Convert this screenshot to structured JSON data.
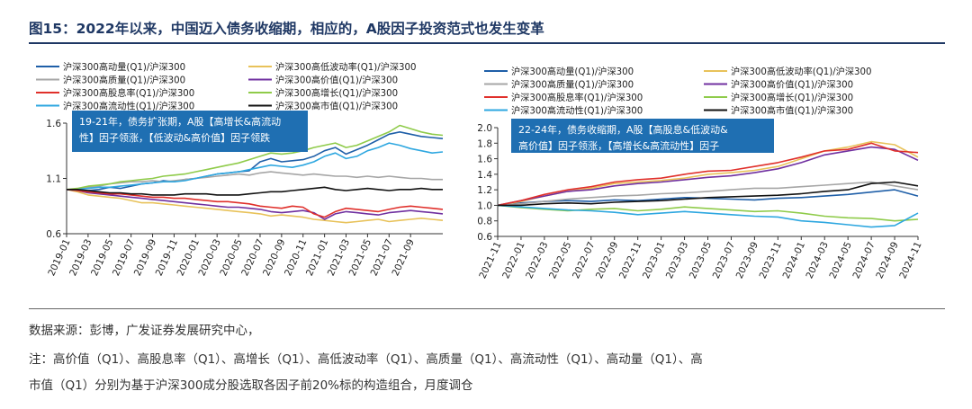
{
  "title": "图15：2022年以来，中国迈入债务收缩期，相应的，A股因子投资范式也发生变革",
  "source": "数据来源：彭博，广发证券发展研究中心，",
  "note_line1": "注：高价值（Q1）、高股息率（Q1）、高增长（Q1）、高低波动率（Q1）、高质量（Q1）、高流动性（Q1）、高动量（Q1）、高",
  "note_line2": "市值（Q1）分别为基于沪深300成分股选取各因子前20%标的构造组合，月度调仓",
  "chart_data": [
    {
      "type": "line",
      "legend_position": "top",
      "annotation": [
        "19-21年，债务扩张期，A股【高增长&高流动",
        "性】因子领涨，【低波动&高价值】因子领跌"
      ],
      "x": [
        "2019-01",
        "2019-02",
        "2019-03",
        "2019-04",
        "2019-05",
        "2019-06",
        "2019-07",
        "2019-08",
        "2019-09",
        "2019-10",
        "2019-11",
        "2019-12",
        "2020-01",
        "2020-02",
        "2020-03",
        "2020-04",
        "2020-05",
        "2020-06",
        "2020-07",
        "2020-08",
        "2020-09",
        "2020-10",
        "2020-11",
        "2020-12",
        "2021-01",
        "2021-02",
        "2021-03",
        "2021-04",
        "2021-05",
        "2021-06",
        "2021-07",
        "2021-08",
        "2021-09",
        "2021-10",
        "2021-11",
        "2021-12"
      ],
      "xticks": [
        "2019-01",
        "2019-03",
        "2019-05",
        "2019-07",
        "2019-09",
        "2019-11",
        "2020-01",
        "2020-03",
        "2020-05",
        "2020-07",
        "2020-09",
        "2020-11",
        "2021-01",
        "2021-03",
        "2021-05",
        "2021-07",
        "2021-09"
      ],
      "ylim": [
        0.6,
        1.6
      ],
      "yticks": [
        0.6,
        1.1,
        1.6
      ],
      "series": [
        {
          "name": "沪深300高动量(Q1)/沪深300",
          "color": "#1f5fa8",
          "values": [
            1.0,
            0.99,
            0.99,
            1.0,
            1.02,
            1.01,
            1.03,
            1.05,
            1.06,
            1.08,
            1.07,
            1.09,
            1.1,
            1.12,
            1.14,
            1.15,
            1.16,
            1.17,
            1.25,
            1.28,
            1.25,
            1.26,
            1.27,
            1.3,
            1.35,
            1.38,
            1.32,
            1.36,
            1.4,
            1.45,
            1.5,
            1.52,
            1.5,
            1.48,
            1.47,
            1.46
          ]
        },
        {
          "name": "沪深300高低波动率(Q1)/沪深300",
          "color": "#e8c25a",
          "values": [
            1.0,
            0.98,
            0.95,
            0.94,
            0.93,
            0.92,
            0.9,
            0.88,
            0.88,
            0.87,
            0.86,
            0.85,
            0.84,
            0.83,
            0.82,
            0.81,
            0.8,
            0.79,
            0.78,
            0.76,
            0.77,
            0.76,
            0.75,
            0.73,
            0.72,
            0.71,
            0.7,
            0.71,
            0.72,
            0.73,
            0.71,
            0.72,
            0.73,
            0.74,
            0.73,
            0.72
          ]
        },
        {
          "name": "沪深300高质量(Q1)/沪深300",
          "color": "#a6a6a6",
          "values": [
            1.0,
            1.0,
            1.02,
            1.03,
            1.05,
            1.06,
            1.07,
            1.07,
            1.08,
            1.07,
            1.08,
            1.09,
            1.1,
            1.11,
            1.12,
            1.13,
            1.14,
            1.13,
            1.15,
            1.16,
            1.15,
            1.14,
            1.13,
            1.14,
            1.13,
            1.12,
            1.12,
            1.11,
            1.12,
            1.11,
            1.12,
            1.11,
            1.1,
            1.1,
            1.09,
            1.09
          ]
        },
        {
          "name": "沪深300高价值(Q1)/沪深300",
          "color": "#7030a0",
          "values": [
            1.0,
            0.99,
            0.97,
            0.96,
            0.95,
            0.94,
            0.93,
            0.92,
            0.91,
            0.9,
            0.89,
            0.88,
            0.87,
            0.86,
            0.85,
            0.84,
            0.84,
            0.83,
            0.82,
            0.8,
            0.79,
            0.8,
            0.81,
            0.79,
            0.73,
            0.78,
            0.8,
            0.79,
            0.78,
            0.77,
            0.79,
            0.8,
            0.81,
            0.8,
            0.79,
            0.78
          ]
        },
        {
          "name": "沪深300高股息率(Q1)/沪深300",
          "color": "#e0302b",
          "values": [
            1.0,
            0.99,
            0.98,
            0.97,
            0.96,
            0.96,
            0.95,
            0.94,
            0.93,
            0.93,
            0.92,
            0.92,
            0.91,
            0.9,
            0.89,
            0.89,
            0.88,
            0.87,
            0.85,
            0.84,
            0.83,
            0.85,
            0.84,
            0.78,
            0.75,
            0.8,
            0.83,
            0.82,
            0.81,
            0.8,
            0.82,
            0.84,
            0.85,
            0.84,
            0.83,
            0.82
          ]
        },
        {
          "name": "沪深300高增长(Q1)/沪深300",
          "color": "#8fcb4a",
          "values": [
            1.0,
            1.01,
            1.03,
            1.04,
            1.05,
            1.07,
            1.08,
            1.09,
            1.1,
            1.12,
            1.13,
            1.14,
            1.16,
            1.18,
            1.2,
            1.22,
            1.24,
            1.27,
            1.3,
            1.33,
            1.32,
            1.33,
            1.35,
            1.38,
            1.4,
            1.42,
            1.38,
            1.4,
            1.44,
            1.48,
            1.52,
            1.58,
            1.55,
            1.52,
            1.5,
            1.49
          ]
        },
        {
          "name": "沪深300高流动性(Q1)/沪深300",
          "color": "#2ea7e0",
          "values": [
            1.0,
            1.0,
            1.01,
            1.02,
            1.02,
            1.03,
            1.04,
            1.05,
            1.06,
            1.07,
            1.07,
            1.08,
            1.1,
            1.12,
            1.14,
            1.15,
            1.16,
            1.18,
            1.2,
            1.22,
            1.21,
            1.2,
            1.22,
            1.25,
            1.3,
            1.33,
            1.28,
            1.3,
            1.35,
            1.38,
            1.42,
            1.4,
            1.37,
            1.35,
            1.33,
            1.34
          ]
        },
        {
          "name": "沪深300高市值(Q1)/沪深300",
          "color": "#111111",
          "values": [
            1.0,
            1.0,
            0.99,
            0.98,
            0.97,
            0.97,
            0.96,
            0.96,
            0.95,
            0.95,
            0.95,
            0.96,
            0.96,
            0.96,
            0.95,
            0.95,
            0.95,
            0.96,
            0.97,
            0.98,
            0.98,
            0.99,
            1.0,
            1.01,
            1.02,
            1.0,
            0.99,
            1.0,
            1.01,
            1.0,
            0.99,
            1.0,
            1.0,
            1.01,
            1.0,
            1.0
          ]
        }
      ]
    },
    {
      "type": "line",
      "legend_position": "top",
      "annotation": [
        "22-24年，债务收缩期，A股【高股息&低波动&",
        "高价值】因子领涨，【高增长&高流动性】因子"
      ],
      "x": [
        "2021-11",
        "2022-01",
        "2022-03",
        "2022-05",
        "2022-07",
        "2022-09",
        "2022-11",
        "2023-01",
        "2023-03",
        "2023-05",
        "2023-07",
        "2023-09",
        "2023-11",
        "2024-01",
        "2024-03",
        "2024-05",
        "2024-07",
        "2024-09",
        "2024-11"
      ],
      "xticks": [
        "2021-11",
        "2022-01",
        "2022-03",
        "2022-05",
        "2022-07",
        "2022-09",
        "2022-11",
        "2023-01",
        "2023-03",
        "2023-05",
        "2023-07",
        "2023-09",
        "2023-11",
        "2024-01",
        "2024-03",
        "2024-05",
        "2024-07",
        "2024-09",
        "2024-11"
      ],
      "ylim": [
        0.6,
        2.0
      ],
      "yticks": [
        0.6,
        0.8,
        1.0,
        1.2,
        1.4,
        1.6,
        1.8,
        2.0
      ],
      "series": [
        {
          "name": "沪深300高动量(Q1)/沪深300",
          "color": "#1f5fa8",
          "values": [
            1.0,
            1.03,
            1.05,
            1.06,
            1.05,
            1.07,
            1.06,
            1.08,
            1.1,
            1.09,
            1.08,
            1.07,
            1.09,
            1.1,
            1.12,
            1.14,
            1.17,
            1.2,
            1.12
          ]
        },
        {
          "name": "沪深300高低波动率(Q1)/沪深300",
          "color": "#e8c25a",
          "values": [
            1.0,
            1.05,
            1.12,
            1.18,
            1.22,
            1.28,
            1.3,
            1.32,
            1.35,
            1.4,
            1.42,
            1.45,
            1.5,
            1.6,
            1.7,
            1.75,
            1.82,
            1.78,
            1.62
          ]
        },
        {
          "name": "沪深300高质量(Q1)/沪深300",
          "color": "#a6a6a6",
          "values": [
            1.0,
            1.02,
            1.05,
            1.08,
            1.1,
            1.12,
            1.13,
            1.15,
            1.16,
            1.18,
            1.2,
            1.22,
            1.22,
            1.24,
            1.26,
            1.28,
            1.3,
            1.25,
            1.2
          ]
        },
        {
          "name": "沪深300高价值(Q1)/沪深300",
          "color": "#7030a0",
          "values": [
            1.0,
            1.06,
            1.12,
            1.18,
            1.2,
            1.25,
            1.28,
            1.3,
            1.33,
            1.36,
            1.38,
            1.42,
            1.47,
            1.55,
            1.65,
            1.7,
            1.75,
            1.72,
            1.58
          ]
        },
        {
          "name": "沪深300高股息率(Q1)/沪深300",
          "color": "#e0302b",
          "values": [
            1.0,
            1.06,
            1.14,
            1.2,
            1.24,
            1.3,
            1.33,
            1.35,
            1.4,
            1.44,
            1.45,
            1.5,
            1.55,
            1.62,
            1.7,
            1.72,
            1.8,
            1.7,
            1.68
          ]
        },
        {
          "name": "沪深300高增长(Q1)/沪深300",
          "color": "#8fcb4a",
          "values": [
            1.0,
            0.97,
            0.95,
            0.93,
            0.95,
            0.96,
            0.93,
            0.95,
            0.98,
            0.96,
            0.94,
            0.92,
            0.93,
            0.9,
            0.86,
            0.84,
            0.83,
            0.8,
            0.82
          ]
        },
        {
          "name": "沪深300高流动性(Q1)/沪深300",
          "color": "#2ea7e0",
          "values": [
            1.0,
            0.98,
            0.96,
            0.94,
            0.93,
            0.91,
            0.88,
            0.9,
            0.92,
            0.9,
            0.88,
            0.86,
            0.85,
            0.8,
            0.78,
            0.75,
            0.72,
            0.74,
            0.9
          ]
        },
        {
          "name": "沪深300高市值(Q1)/沪深300",
          "color": "#111111",
          "values": [
            1.0,
            1.0,
            1.02,
            1.03,
            1.02,
            1.04,
            1.05,
            1.06,
            1.08,
            1.1,
            1.11,
            1.12,
            1.13,
            1.15,
            1.18,
            1.2,
            1.28,
            1.3,
            1.25
          ]
        }
      ]
    }
  ]
}
